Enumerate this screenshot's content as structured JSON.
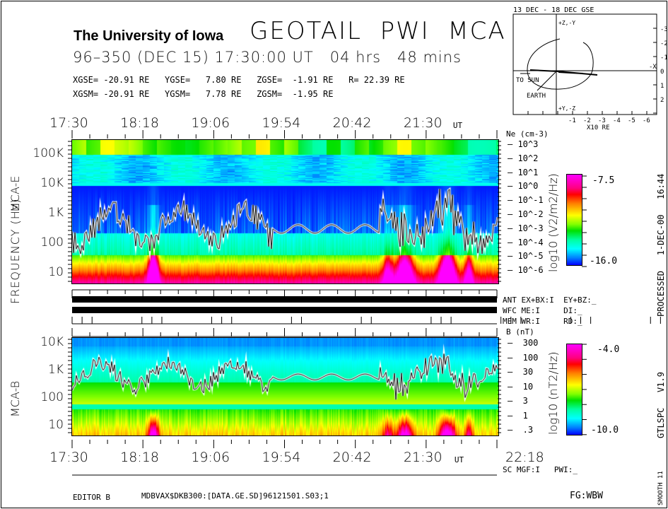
{
  "header": {
    "institution": "The University of Iowa",
    "instrument": "GEOTAIL  PWI  MCA",
    "date_line": "96–350 (DEC 15) 17:30:00 UT   04 hrs   48 mins",
    "gse_line": "XGSE= -20.91 RE   YGSE=   7.80 RE   ZGSE=  -1.91 RE   R= 22.39 RE",
    "gsm_line": "XGSM= -20.91 RE   YGSM=   7.78 RE   ZGSM=  -1.95 RE"
  },
  "side_labels": {
    "processed": "PROCESSED   1-DEC-00   16:44",
    "version": "GTLSPC   V1.9",
    "smooth": "SMOOTH 11"
  },
  "footer": {
    "editor": "EDITOR B",
    "file": "MDBVAX$DKB300:[DATA.GE.SD]96121501.S03;1",
    "fg": "FG:WBW"
  },
  "status": {
    "ant": "ANT EX+BX:I  EY+BZ:_",
    "wfc": "WFC ME:I     DI:_",
    "mem": "MEM WR:I     RD:_",
    "sc": "SC MGF:I   PWI:_"
  },
  "chart_data": [
    {
      "type": "heatmap",
      "title": "MCA-E",
      "xlabel": "UT",
      "ylabel": "FREQUENCY (Hz)",
      "x_ticks": [
        "17:30",
        "18:18",
        "19:06",
        "19:54",
        "20:42",
        "21:30"
      ],
      "x_unit": "UT",
      "y_scale": "log",
      "y_ticks": [
        "10",
        "100",
        "1K",
        "10K",
        "100K"
      ],
      "ylim": [
        5,
        300000
      ],
      "right_axis": {
        "label": "Ne (cm-3)",
        "ticks": [
          "10^3",
          "10^2",
          "10^1",
          "10^0",
          "10^-1",
          "10^-2",
          "10^-3",
          "10^-4",
          "10^-5",
          "10^-6"
        ]
      },
      "colorbar": {
        "label": "log10 (V2/m2/Hz)",
        "max": "-7.5",
        "min": "-16.0",
        "range": [
          -16.0,
          -7.5
        ]
      },
      "overlay_line": "electron plasma frequency trace, ~200-700 Hz"
    },
    {
      "type": "heatmap",
      "title": "MCA-B",
      "xlabel": "UT",
      "ylabel": "FREQUENCY (Hz)",
      "x_ticks": [
        "17:30",
        "18:18",
        "19:06",
        "19:54",
        "20:42",
        "21:30",
        "22:18"
      ],
      "x_unit": "UT",
      "y_scale": "log",
      "y_ticks": [
        "10",
        "100",
        "1K",
        "10K"
      ],
      "ylim": [
        5,
        15000
      ],
      "right_axis": {
        "label": "B (nT)",
        "ticks": [
          "300",
          "100",
          "30",
          "10",
          "3",
          "1",
          ".3"
        ]
      },
      "colorbar": {
        "label": "log10 (nT2/Hz)",
        "max": "-4.0",
        "min": "-10.0",
        "range": [
          -10.0,
          -4.0
        ]
      },
      "overlay_line": "electron cyclotron frequency trace, ~200-700 Hz"
    },
    {
      "type": "scatter",
      "title": "13 DEC - 18 DEC  GSE",
      "xlabel": "X10 RE",
      "x_ticks": [
        "-1",
        "-2",
        "-3",
        "-4",
        "-5",
        "-6"
      ],
      "y_ticks": [
        "-3",
        "-2",
        "-1",
        "0",
        "1",
        "2"
      ],
      "annotations": [
        "TO SUN",
        "EARTH",
        "-X",
        "+Z,-Y",
        "+Y,-Z"
      ],
      "orbit_note": "spacecraft orbit projection"
    }
  ]
}
